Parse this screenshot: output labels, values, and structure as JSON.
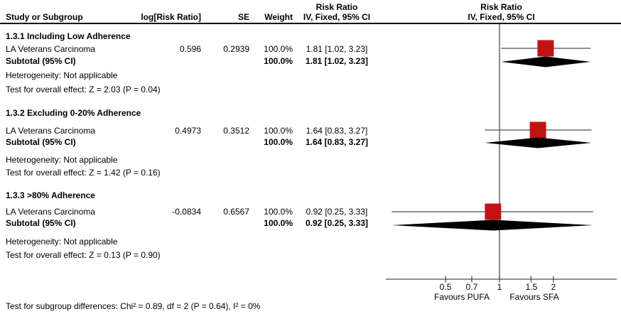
{
  "header": {
    "col_study": "Study or Subgroup",
    "col_log_rr": "log[Risk Ratio]",
    "col_se": "SE",
    "col_weight": "Weight",
    "stats_effect_line1": "Risk Ratio",
    "stats_effect_line2": "IV, Fixed, 95% CI",
    "plot_effect_line1": "Risk Ratio",
    "plot_effect_line2": "IV, Fixed, 95% CI"
  },
  "groups": [
    {
      "title": "1.3.1 Including Low Adherence",
      "study": {
        "name": "LA Veterans Carcinoma",
        "log_rr": "0.596",
        "se": "0.2939",
        "weight": "100.0%",
        "effect": "1.81 [1.02, 3.23]"
      },
      "subtotal": {
        "label": "Subtotal (95% CI)",
        "weight": "100.0%",
        "effect": "1.81 [1.02, 3.23]"
      },
      "heterogeneity": "Heterogeneity: Not applicable",
      "overall_effect": "Test for overall effect: Z = 2.03 (P = 0.04)"
    },
    {
      "title": "1.3.2 Excluding 0-20% Adherence",
      "study": {
        "name": "LA Veterans Carcinoma",
        "log_rr": "0.4973",
        "se": "0.3512",
        "weight": "100.0%",
        "effect": "1.64 [0.83, 3.27]"
      },
      "subtotal": {
        "label": "Subtotal (95% CI)",
        "weight": "100.0%",
        "effect": "1.64 [0.83, 3.27]"
      },
      "heterogeneity": "Heterogeneity: Not applicable",
      "overall_effect": "Test for overall effect: Z = 1.42 (P = 0.16)"
    },
    {
      "title": "1.3.3 >80% Adherence",
      "study": {
        "name": "LA Veterans Carcinoma",
        "log_rr": "-0.0834",
        "se": "0.6567",
        "weight": "100.0%",
        "effect": "0.92 [0.25, 3.33]"
      },
      "subtotal": {
        "label": "Subtotal (95% CI)",
        "weight": "100.0%",
        "effect": "0.92 [0.25, 3.33]"
      },
      "heterogeneity": "Heterogeneity: Not applicable",
      "overall_effect": "Test for overall effect: Z = 0.13 (P = 0.90)"
    }
  ],
  "axis": {
    "tick_labels": [
      "0.5",
      "0.7",
      "1",
      "1.5",
      "2"
    ],
    "left_label": "Favours PUFA",
    "right_label": "Favours SFA"
  },
  "footer": {
    "subgroup_test": "Test for subgroup differences: Chi² = 0.89, df = 2 (P = 0.64), I² = 0%"
  },
  "chart_data": {
    "type": "forest",
    "effect_measure": "Risk Ratio",
    "model": "IV, Fixed, 95% CI",
    "x_scale": "log",
    "axis_ticks": [
      0.5,
      0.7,
      1,
      1.5,
      2
    ],
    "null_line": 1,
    "groups": [
      {
        "title": "1.3.1 Including Low Adherence",
        "study": {
          "name": "LA Veterans Carcinoma",
          "log_rr": 0.596,
          "se": 0.2939,
          "weight_pct": 100.0,
          "est": 1.81,
          "lo": 1.02,
          "hi": 3.23
        },
        "subtotal": {
          "est": 1.81,
          "lo": 1.02,
          "hi": 3.23,
          "z": 2.03,
          "p": 0.04
        }
      },
      {
        "title": "1.3.2 Excluding 0-20% Adherence",
        "study": {
          "name": "LA Veterans Carcinoma",
          "log_rr": 0.4973,
          "se": 0.3512,
          "weight_pct": 100.0,
          "est": 1.64,
          "lo": 0.83,
          "hi": 3.27
        },
        "subtotal": {
          "est": 1.64,
          "lo": 0.83,
          "hi": 3.27,
          "z": 1.42,
          "p": 0.16
        }
      },
      {
        "title": "1.3.3 >80% Adherence",
        "study": {
          "name": "LA Veterans Carcinoma",
          "log_rr": -0.0834,
          "se": 0.6567,
          "weight_pct": 100.0,
          "est": 0.92,
          "lo": 0.25,
          "hi": 3.33
        },
        "subtotal": {
          "est": 0.92,
          "lo": 0.25,
          "hi": 3.33,
          "z": 0.13,
          "p": 0.9
        }
      }
    ],
    "subgroup_differences": {
      "chi2": 0.89,
      "df": 2,
      "p": 0.64,
      "i2_pct": 0
    },
    "colors": {
      "marker": "#c01414",
      "diamond": "#000000",
      "line": "#4d4d4d"
    }
  }
}
